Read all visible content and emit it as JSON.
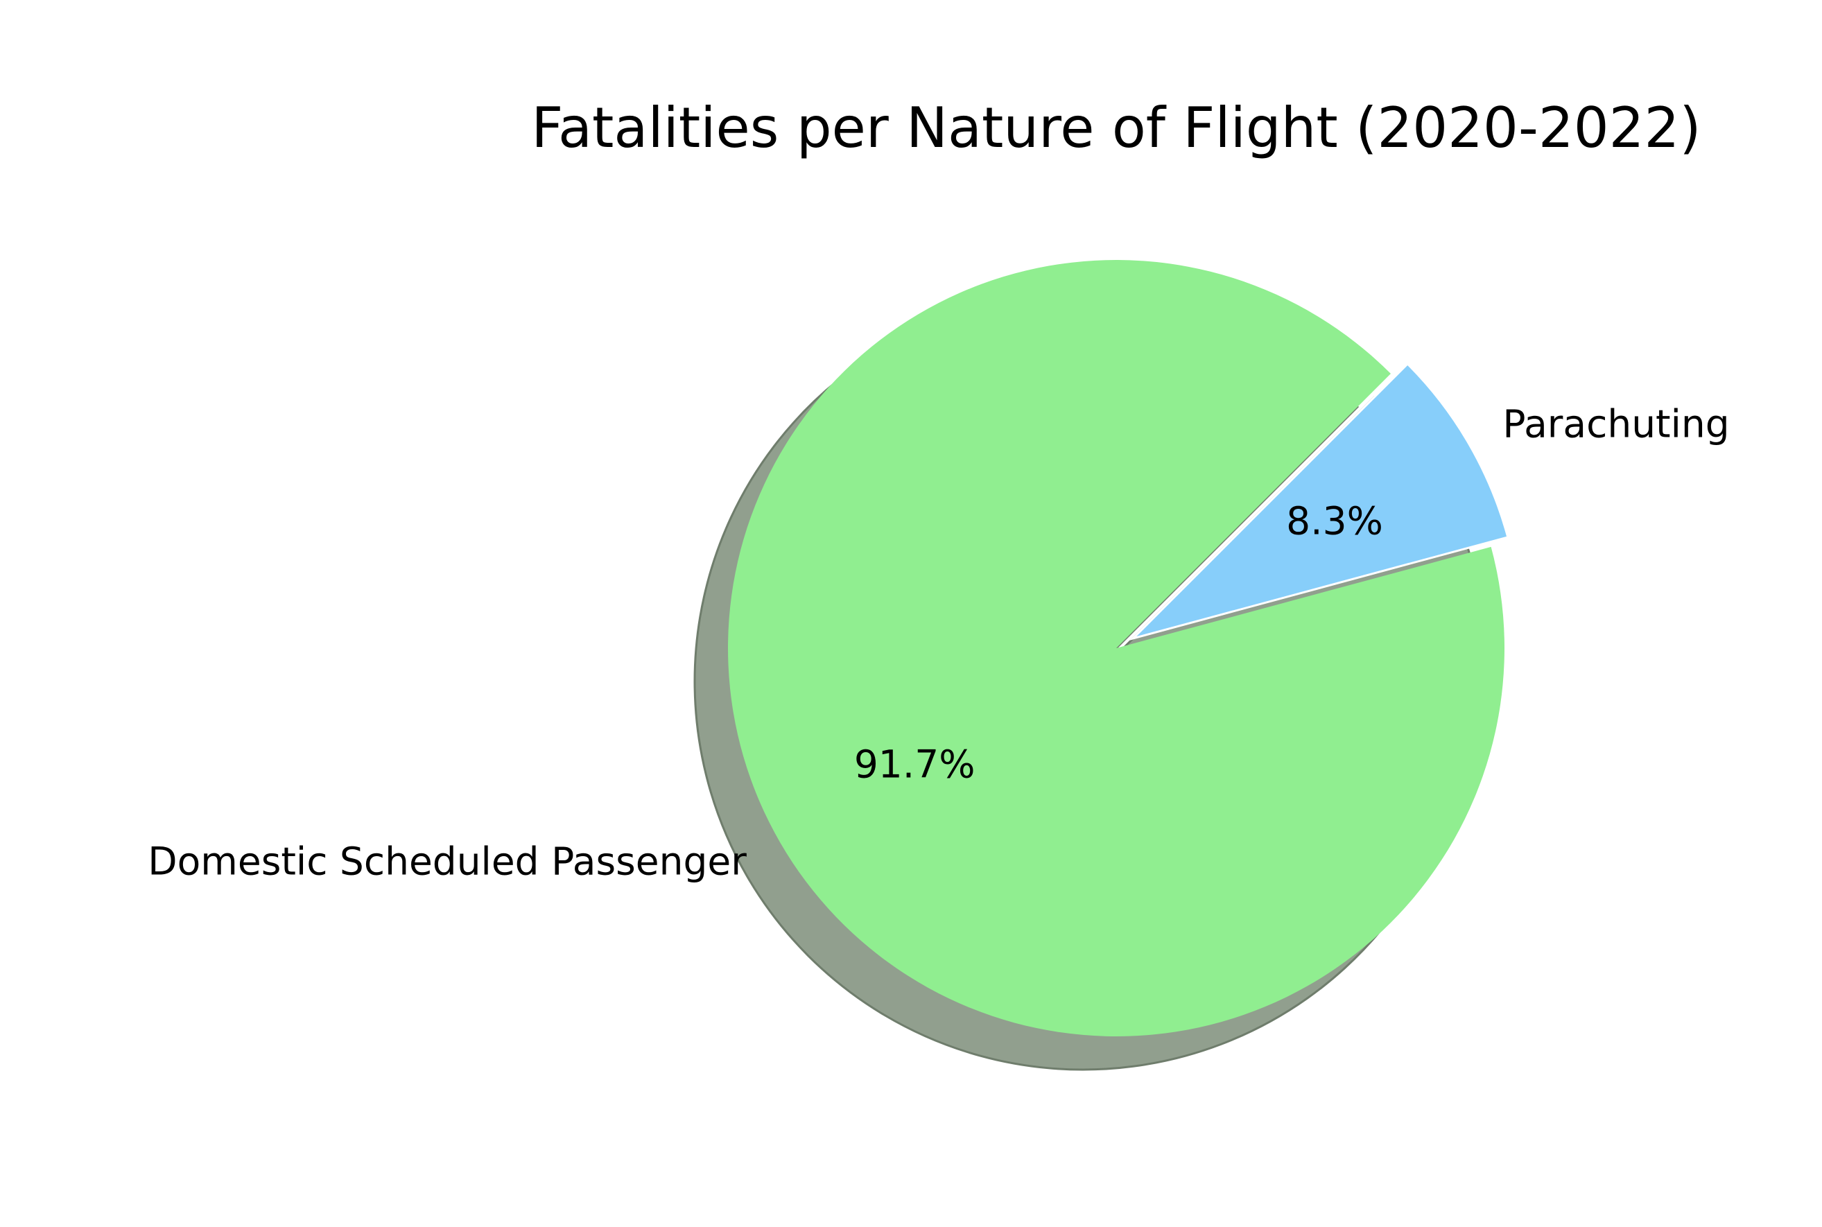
{
  "chart_data": {
    "type": "pie",
    "title": "Fatalities per Nature of Flight (2020-2022)",
    "slices": [
      {
        "label": "Domestic Scheduled Passenger",
        "value": 91.7,
        "pct_label": "91.7%",
        "color": "#90EE90",
        "exploded": false
      },
      {
        "label": "Parachuting",
        "value": 8.3,
        "pct_label": "8.3%",
        "color": "#87CEFA",
        "exploded": true
      }
    ],
    "shadow": true,
    "shadow_color": "#919f8e",
    "start_angle_deg": 45,
    "direction": "counterclockwise",
    "legend": "none"
  }
}
